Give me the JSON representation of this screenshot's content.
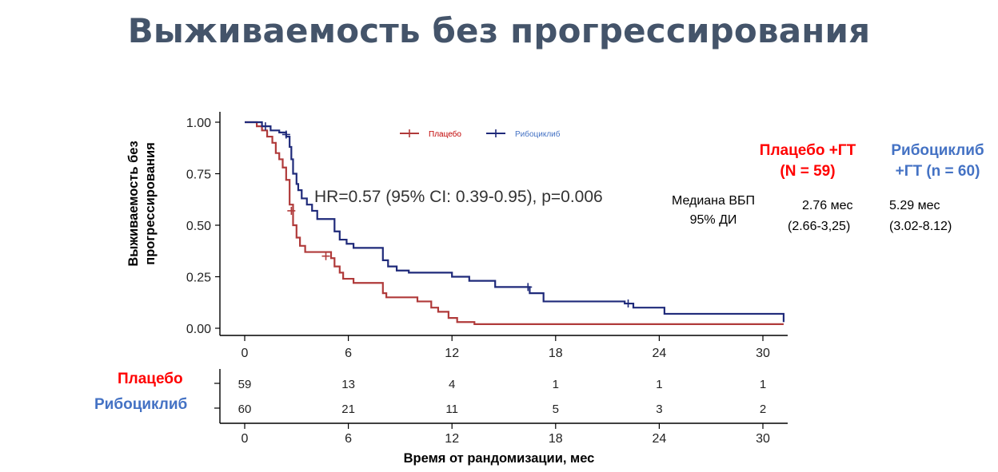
{
  "title": "Выживаемость без прогрессирования",
  "chart_data": {
    "type": "line",
    "subtype": "kaplan-meier",
    "ylabel": "Выживаемость без прогрессирования",
    "xlabel": "Время от рандомизации, мес",
    "xlim": [
      0,
      31
    ],
    "ylim": [
      0,
      1
    ],
    "x_ticks": [
      "0",
      "6",
      "12",
      "18",
      "24",
      "30"
    ],
    "y_ticks": [
      "0.00",
      "0.25",
      "0.50",
      "0.75",
      "1.00"
    ],
    "legend": {
      "placement": "top-center",
      "entries": [
        "Плацебо",
        "Рибоциклиб"
      ]
    },
    "annotation": "HR=0.57 (95% CI: 0.39-0.95), p=0.006",
    "series": [
      {
        "name": "Плацебо",
        "color": "#b03a3a",
        "x": [
          0,
          0.7,
          1.0,
          1.3,
          1.6,
          1.8,
          2.0,
          2.2,
          2.4,
          2.6,
          2.8,
          3.0,
          3.2,
          3.5,
          5.0,
          5.2,
          5.5,
          5.7,
          6.3,
          6.8,
          8.0,
          8.2,
          8.8,
          10.0,
          10.8,
          11.2,
          11.8,
          12.3,
          13.3,
          31.2
        ],
        "y": [
          1.0,
          0.98,
          0.96,
          0.93,
          0.9,
          0.85,
          0.82,
          0.78,
          0.72,
          0.6,
          0.5,
          0.44,
          0.4,
          0.37,
          0.34,
          0.3,
          0.27,
          0.24,
          0.22,
          0.22,
          0.17,
          0.15,
          0.15,
          0.13,
          0.1,
          0.08,
          0.05,
          0.03,
          0.02,
          0.02
        ],
        "censor": [
          [
            2.7,
            0.57
          ],
          [
            4.7,
            0.35
          ]
        ]
      },
      {
        "name": "Рибоциклиб",
        "color": "#1f2a7a",
        "x": [
          0,
          1.0,
          1.5,
          2.0,
          2.4,
          2.6,
          2.7,
          2.8,
          3.0,
          3.1,
          3.3,
          3.6,
          3.9,
          4.2,
          5.0,
          5.2,
          5.5,
          5.9,
          6.3,
          7.0,
          8.0,
          8.3,
          8.8,
          9.5,
          10.0,
          11.0,
          12.0,
          13.0,
          14.5,
          16.0,
          16.5,
          17.3,
          18.0,
          22.0,
          22.5,
          24.3,
          25.0,
          31.2
        ],
        "y": [
          1.0,
          0.98,
          0.96,
          0.95,
          0.93,
          0.88,
          0.82,
          0.75,
          0.7,
          0.67,
          0.63,
          0.6,
          0.57,
          0.53,
          0.53,
          0.47,
          0.43,
          0.41,
          0.39,
          0.39,
          0.33,
          0.3,
          0.28,
          0.27,
          0.27,
          0.27,
          0.25,
          0.23,
          0.2,
          0.2,
          0.17,
          0.13,
          0.13,
          0.12,
          0.1,
          0.07,
          0.07,
          0.03
        ],
        "censor": [
          [
            1.2,
            0.98
          ],
          [
            2.4,
            0.94
          ],
          [
            16.4,
            0.2
          ],
          [
            22.2,
            0.12
          ]
        ]
      }
    ],
    "risk_table": {
      "times": [
        "0",
        "6",
        "12",
        "18",
        "24",
        "30"
      ],
      "rows": [
        {
          "name": "Плацебо",
          "color": "#ff0000",
          "values": [
            "59",
            "13",
            "4",
            "1",
            "1",
            "1"
          ]
        },
        {
          "name": "Рибоциклиб",
          "color": "#4472c4",
          "values": [
            "60",
            "21",
            "11",
            "5",
            "3",
            "2"
          ]
        }
      ]
    }
  },
  "groups": {
    "placebo": {
      "name": "Плацебо +ГТ",
      "n": "(N = 59)",
      "median": "2.76 мес",
      "ci": "(2.66-3,25)"
    },
    "ribociclib": {
      "name": "Рибоциклиб",
      "name2": "+ГТ (n = 60)",
      "median": "5.29 мес",
      "ci": "(3.02-8.12)"
    }
  },
  "median_header": {
    "line1": "Медиана ВБП",
    "line2": "95% ДИ"
  }
}
